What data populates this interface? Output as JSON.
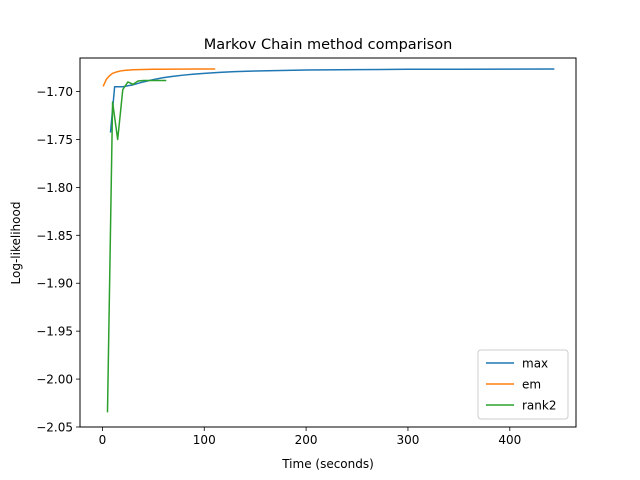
{
  "chart_data": {
    "type": "line",
    "title": "Markov Chain method comparison",
    "xlabel": "Time (seconds)",
    "ylabel": "Log-likelihood",
    "xlim": [
      -22,
      465
    ],
    "ylim": [
      -2.05,
      -1.665
    ],
    "xticks": [
      0,
      100,
      200,
      300,
      400
    ],
    "xtick_labels": [
      "0",
      "100",
      "200",
      "300",
      "400"
    ],
    "yticks": [
      -2.05,
      -2.0,
      -1.95,
      -1.9,
      -1.85,
      -1.8,
      -1.75,
      -1.7
    ],
    "ytick_labels": [
      "−2.05",
      "−2.00",
      "−1.95",
      "−1.90",
      "−1.85",
      "−1.80",
      "−1.75",
      "−1.70"
    ],
    "grid": false,
    "legend_position": "lower right",
    "series": [
      {
        "name": "max",
        "color": "#1f77b4",
        "x": [
          8,
          12,
          15,
          20,
          25,
          30,
          40,
          50,
          60,
          70,
          80,
          90,
          100,
          115,
          130,
          150,
          175,
          200,
          250,
          300,
          350,
          400,
          443
        ],
        "y": [
          -1.742,
          -1.695,
          -1.695,
          -1.695,
          -1.694,
          -1.693,
          -1.69,
          -1.6875,
          -1.6855,
          -1.684,
          -1.6828,
          -1.6818,
          -1.681,
          -1.68,
          -1.6792,
          -1.6785,
          -1.678,
          -1.6775,
          -1.6771,
          -1.6768,
          -1.6767,
          -1.6766,
          -1.6765
        ]
      },
      {
        "name": "em",
        "color": "#ff7f0e",
        "x": [
          1,
          4,
          7,
          10,
          14,
          18,
          23,
          30,
          40,
          50,
          60,
          70,
          80,
          90,
          100,
          110
        ],
        "y": [
          -1.694,
          -1.687,
          -1.6835,
          -1.681,
          -1.6795,
          -1.6785,
          -1.6778,
          -1.6773,
          -1.677,
          -1.6768,
          -1.6767,
          -1.6766,
          -1.6766,
          -1.6765,
          -1.6765,
          -1.6765
        ]
      },
      {
        "name": "rank2",
        "color": "#2ca02c",
        "x": [
          5,
          10,
          15,
          20,
          25,
          30,
          35,
          40,
          45,
          50,
          55,
          62
        ],
        "y": [
          -2.034,
          -1.711,
          -1.75,
          -1.698,
          -1.69,
          -1.6925,
          -1.689,
          -1.6885,
          -1.6885,
          -1.6885,
          -1.6885,
          -1.6885
        ]
      }
    ]
  }
}
